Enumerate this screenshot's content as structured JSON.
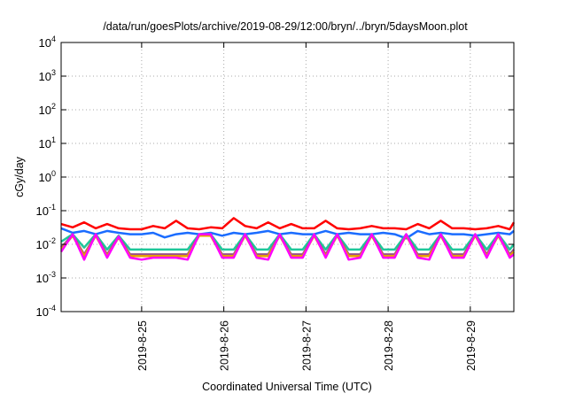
{
  "chart_data": {
    "type": "line",
    "title": "/data/run/goesPlots/archive/2019-08-29/12:00/bryn/../bryn/5daysMoon.plot",
    "xlabel": "Coordinated Universal Time (UTC)",
    "ylabel": "cGy/day",
    "yscale": "log",
    "ylim": [
      0.0001,
      10000
    ],
    "xlim_days_since_2019_08_24": [
      0.02,
      5.53
    ],
    "grid": true,
    "ytick_exponents": [
      "4",
      "3",
      "2",
      "1",
      "0",
      "-1",
      "-2",
      "-3",
      "-4"
    ],
    "ytick_base": "10",
    "xticks": [
      {
        "day": 1,
        "label": "2019-8-25"
      },
      {
        "day": 2,
        "label": "2019-8-26"
      },
      {
        "day": 3,
        "label": "2019-8-27"
      },
      {
        "day": 4,
        "label": "2019-8-28"
      },
      {
        "day": 5,
        "label": "2019-8-29"
      }
    ],
    "x": [
      0.02,
      0.16,
      0.3,
      0.44,
      0.58,
      0.72,
      0.86,
      1.0,
      1.14,
      1.28,
      1.42,
      1.56,
      1.7,
      1.84,
      1.98,
      2.12,
      2.26,
      2.4,
      2.54,
      2.68,
      2.82,
      2.96,
      3.1,
      3.24,
      3.38,
      3.52,
      3.66,
      3.8,
      3.94,
      4.08,
      4.22,
      4.36,
      4.5,
      4.64,
      4.78,
      4.92,
      5.06,
      5.2,
      5.34,
      5.48,
      5.53
    ],
    "series": [
      {
        "name": "red",
        "color": "#ff0000",
        "values": [
          0.04,
          0.032,
          0.045,
          0.03,
          0.04,
          0.03,
          0.028,
          0.028,
          0.035,
          0.03,
          0.05,
          0.03,
          0.028,
          0.032,
          0.03,
          0.06,
          0.035,
          0.03,
          0.045,
          0.03,
          0.04,
          0.03,
          0.03,
          0.05,
          0.03,
          0.028,
          0.03,
          0.035,
          0.03,
          0.03,
          0.028,
          0.04,
          0.03,
          0.05,
          0.03,
          0.03,
          0.028,
          0.03,
          0.035,
          0.028,
          0.045
        ]
      },
      {
        "name": "blue",
        "color": "#1a6cff",
        "values": [
          0.03,
          0.022,
          0.025,
          0.02,
          0.025,
          0.022,
          0.02,
          0.02,
          0.022,
          0.016,
          0.02,
          0.022,
          0.02,
          0.022,
          0.018,
          0.022,
          0.02,
          0.022,
          0.025,
          0.02,
          0.022,
          0.02,
          0.02,
          0.025,
          0.02,
          0.022,
          0.02,
          0.02,
          0.022,
          0.02,
          0.015,
          0.025,
          0.02,
          0.022,
          0.02,
          0.02,
          0.018,
          0.02,
          0.022,
          0.02,
          0.025
        ]
      },
      {
        "name": "teal",
        "color": "#1fc79a",
        "values": [
          0.012,
          0.02,
          0.008,
          0.02,
          0.007,
          0.018,
          0.007,
          0.007,
          0.007,
          0.007,
          0.007,
          0.007,
          0.02,
          0.02,
          0.007,
          0.007,
          0.02,
          0.007,
          0.007,
          0.02,
          0.007,
          0.007,
          0.02,
          0.007,
          0.02,
          0.007,
          0.007,
          0.02,
          0.007,
          0.007,
          0.02,
          0.007,
          0.007,
          0.02,
          0.007,
          0.007,
          0.02,
          0.007,
          0.02,
          0.007,
          0.01
        ]
      },
      {
        "name": "purple",
        "color": "#9a4f8a",
        "values": [
          0.008,
          0.019,
          0.005,
          0.019,
          0.005,
          0.017,
          0.005,
          0.005,
          0.005,
          0.005,
          0.005,
          0.005,
          0.019,
          0.019,
          0.005,
          0.005,
          0.019,
          0.005,
          0.005,
          0.019,
          0.005,
          0.005,
          0.019,
          0.005,
          0.019,
          0.005,
          0.005,
          0.019,
          0.005,
          0.005,
          0.019,
          0.005,
          0.005,
          0.019,
          0.005,
          0.005,
          0.019,
          0.005,
          0.019,
          0.005,
          0.007
        ]
      },
      {
        "name": "orange",
        "color": "#e8a000",
        "values": [
          0.007,
          0.018,
          0.0045,
          0.018,
          0.0045,
          0.016,
          0.0045,
          0.0045,
          0.0045,
          0.0045,
          0.0045,
          0.0045,
          0.018,
          0.018,
          0.0045,
          0.0045,
          0.018,
          0.0045,
          0.0045,
          0.018,
          0.0045,
          0.0045,
          0.018,
          0.0045,
          0.018,
          0.0045,
          0.0045,
          0.018,
          0.0045,
          0.0045,
          0.018,
          0.0045,
          0.0045,
          0.018,
          0.0045,
          0.0045,
          0.018,
          0.0045,
          0.018,
          0.0045,
          0.006
        ]
      },
      {
        "name": "magenta",
        "color": "#ff00ff",
        "values": [
          0.006,
          0.02,
          0.0035,
          0.02,
          0.004,
          0.017,
          0.004,
          0.0035,
          0.004,
          0.004,
          0.004,
          0.0035,
          0.02,
          0.02,
          0.004,
          0.004,
          0.02,
          0.004,
          0.0035,
          0.02,
          0.004,
          0.004,
          0.02,
          0.004,
          0.02,
          0.0035,
          0.004,
          0.02,
          0.004,
          0.004,
          0.02,
          0.004,
          0.0035,
          0.02,
          0.004,
          0.004,
          0.02,
          0.004,
          0.02,
          0.004,
          0.005
        ]
      }
    ]
  }
}
